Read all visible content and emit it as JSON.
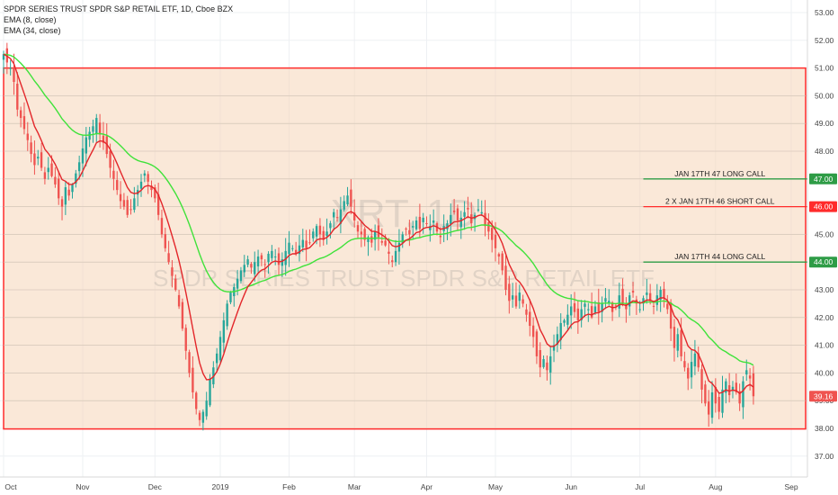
{
  "legend": {
    "title": "SPDR SERIES TRUST SPDR S&P RETAIL ETF, 1D, Cboe BZX",
    "ema8": "EMA (8, close)",
    "ema34": "EMA (34, close)"
  },
  "watermark": {
    "symbol": "XRT, 1D",
    "name": "SPDR SERIES TRUST SPDR S&P RETAIL ETF"
  },
  "colors": {
    "up": "#26a69a",
    "down": "#ef5350",
    "ema8": "#e3262a",
    "ema34": "#3fe23a",
    "zone_fill": "#f5d6b8",
    "zone_border": "#ff2b2b",
    "long_call": "#2e9c46",
    "short_call": "#ff2b2b",
    "price_tag": "#ef5350"
  },
  "chart_data": {
    "type": "candlestick",
    "ylim": [
      36.5,
      53.2
    ],
    "y_ticks": [
      "53.00",
      "52.00",
      "51.00",
      "50.00",
      "49.00",
      "48.00",
      "47.00",
      "46.00",
      "45.00",
      "44.00",
      "43.00",
      "42.00",
      "41.00",
      "40.00",
      "39.00",
      "38.00",
      "37.00"
    ],
    "x_ticks": [
      {
        "label": "Oct",
        "bar": 0
      },
      {
        "label": "Nov",
        "bar": 23
      },
      {
        "label": "Dec",
        "bar": 44
      },
      {
        "label": "2019",
        "bar": 63
      },
      {
        "label": "Feb",
        "bar": 83
      },
      {
        "label": "Mar",
        "bar": 102
      },
      {
        "label": "Apr",
        "bar": 123
      },
      {
        "label": "May",
        "bar": 143
      },
      {
        "label": "Jun",
        "bar": 165
      },
      {
        "label": "Jul",
        "bar": 185
      },
      {
        "label": "Aug",
        "bar": 207
      },
      {
        "label": "Sep",
        "bar": 229
      }
    ],
    "bar_count": 230,
    "closes": [
      51.5,
      51.2,
      51.0,
      50.5,
      49.5,
      49.2,
      48.8,
      48.4,
      47.9,
      47.5,
      47.8,
      47.4,
      47.0,
      47.4,
      47.1,
      46.8,
      46.3,
      46.0,
      46.7,
      46.4,
      46.8,
      47.2,
      47.6,
      48.1,
      48.5,
      48.7,
      48.9,
      49.2,
      48.6,
      48.3,
      47.9,
      47.4,
      47.0,
      46.6,
      46.2,
      46.0,
      45.7,
      45.9,
      46.3,
      46.6,
      46.9,
      47.2,
      46.9,
      46.6,
      46.3,
      45.7,
      45.0,
      44.5,
      44.0,
      43.5,
      43.0,
      42.4,
      41.6,
      40.8,
      40.0,
      39.3,
      38.7,
      38.3,
      38.6,
      39.0,
      39.8,
      40.2,
      40.7,
      41.3,
      41.9,
      42.5,
      42.9,
      43.1,
      43.4,
      43.7,
      43.9,
      44.1,
      43.8,
      44.0,
      44.2,
      44.1,
      43.9,
      44.3,
      44.4,
      44.2,
      43.9,
      44.1,
      44.4,
      44.7,
      44.5,
      44.3,
      44.6,
      44.8,
      44.5,
      44.7,
      45.1,
      45.3,
      45.0,
      44.8,
      45.1,
      45.4,
      45.8,
      45.6,
      45.9,
      46.2,
      46.4,
      46.0,
      45.5,
      45.1,
      45.0,
      44.8,
      44.9,
      44.7,
      45.1,
      44.9,
      44.7,
      44.6,
      44.3,
      44.0,
      44.4,
      44.7,
      45.0,
      45.2,
      45.0,
      45.3,
      45.5,
      45.2,
      45.6,
      45.4,
      45.3,
      45.5,
      45.1,
      44.9,
      45.3,
      45.4,
      45.7,
      45.8,
      45.5,
      45.6,
      45.8,
      45.9,
      45.4,
      45.7,
      45.9,
      45.8,
      45.3,
      45.1,
      44.8,
      44.5,
      44.2,
      43.7,
      43.0,
      42.6,
      42.8,
      42.4,
      42.9,
      42.5,
      42.1,
      41.7,
      41.3,
      40.6,
      40.2,
      40.5,
      40.1,
      40.6,
      41.0,
      41.4,
      41.8,
      41.9,
      42.1,
      42.4,
      42.2,
      41.9,
      42.3,
      42.5,
      42.3,
      42.0,
      42.4,
      42.2,
      42.5,
      42.7,
      42.6,
      42.2,
      42.4,
      42.8,
      42.5,
      42.3,
      42.8,
      42.9,
      42.5,
      42.3,
      42.7,
      42.9,
      42.6,
      42.4,
      42.8,
      43.0,
      42.7,
      42.3,
      41.6,
      40.9,
      41.4,
      40.6,
      40.2,
      39.8,
      40.4,
      40.7,
      40.2,
      39.4,
      38.9,
      38.5,
      39.3,
      38.9,
      38.6,
      39.4,
      39.7,
      39.2,
      39.5,
      39.3,
      38.9,
      39.7,
      40.1,
      39.8,
      39.16
    ]
  },
  "zone": {
    "top": 51.0,
    "bottom": 37.98
  },
  "levels": [
    {
      "label": "JAN 17TH 47 LONG CALL",
      "price": 47.0,
      "tag": "47.00",
      "kind": "long_call",
      "start_bar": 186
    },
    {
      "label": "2 X JAN 17TH 46 SHORT CALL",
      "price": 46.0,
      "tag": "46.00",
      "kind": "short_call",
      "start_bar": 186
    },
    {
      "label": "JAN 17TH 44 LONG CALL",
      "price": 44.0,
      "tag": "44.00",
      "kind": "long_call",
      "start_bar": 186
    }
  ],
  "last_price": {
    "value": 39.16,
    "tag": "39.16"
  }
}
